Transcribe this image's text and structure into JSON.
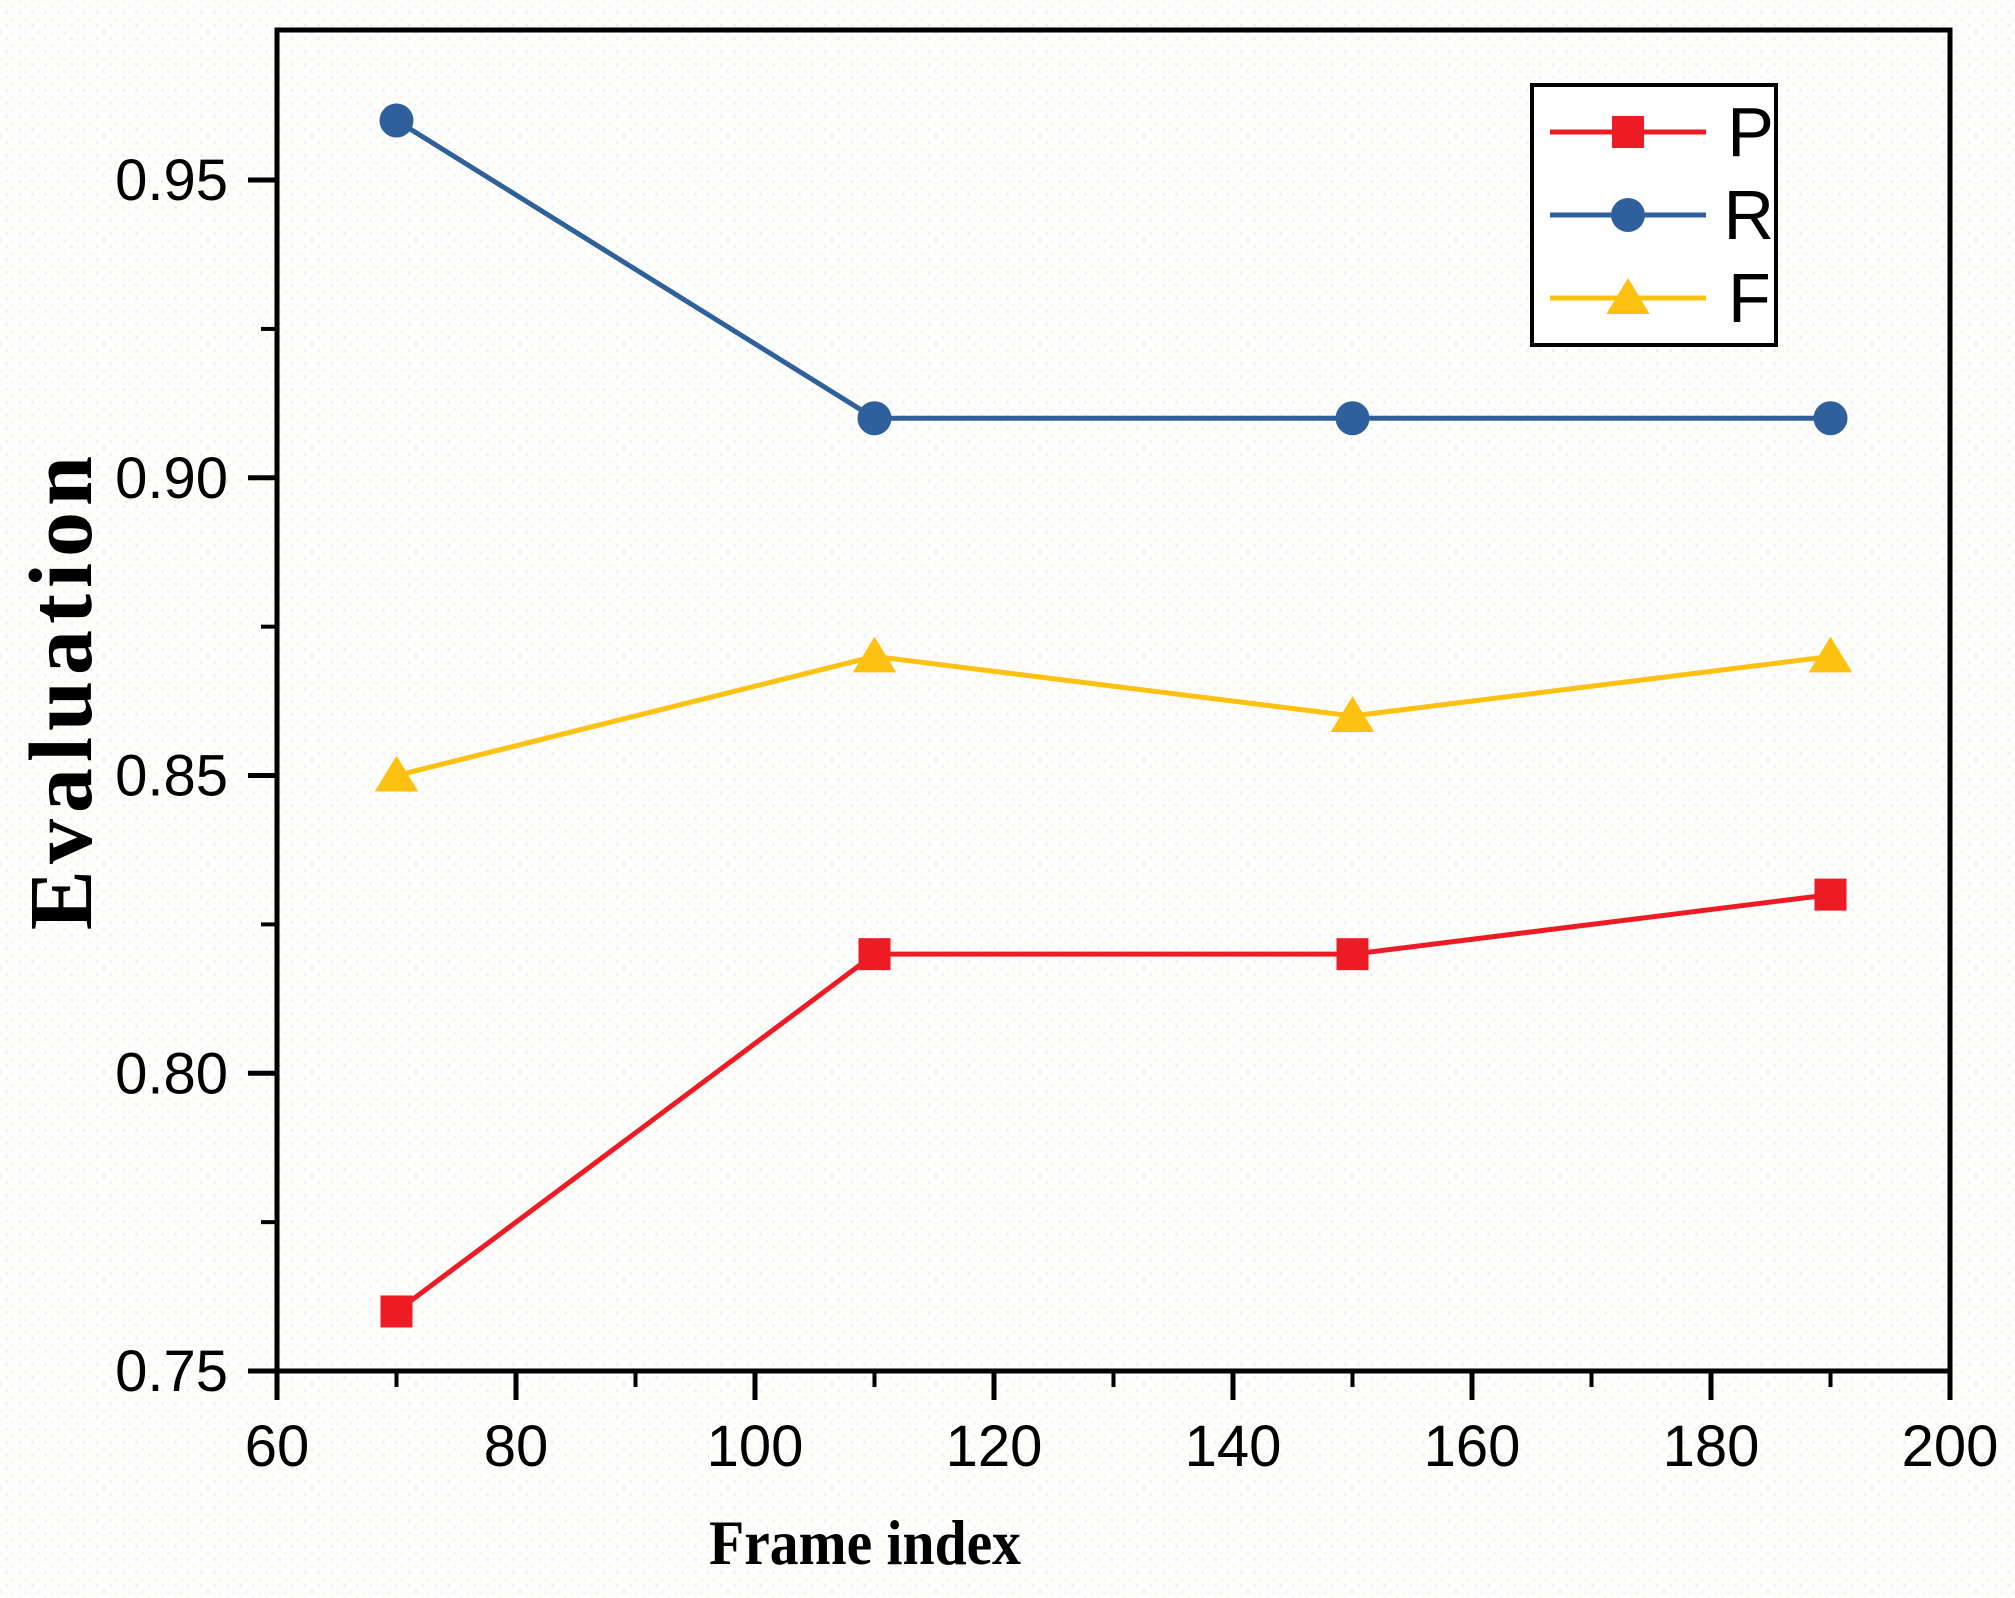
{
  "chart_data": {
    "type": "line",
    "title": "",
    "xlabel": "Frame index",
    "ylabel": "Evaluation",
    "x": [
      70,
      110,
      150,
      190
    ],
    "series": [
      {
        "name": "P",
        "values": [
          0.76,
          0.82,
          0.82,
          0.83
        ],
        "color": "#ED1C24",
        "marker": "square"
      },
      {
        "name": "R",
        "values": [
          0.96,
          0.91,
          0.91,
          0.91
        ],
        "color": "#30609B",
        "marker": "circle"
      },
      {
        "name": "F",
        "values": [
          0.85,
          0.87,
          0.86,
          0.87
        ],
        "color": "#FDC112",
        "marker": "triangle"
      }
    ],
    "xlim": [
      60,
      200
    ],
    "ylim": [
      0.75,
      0.9752
    ],
    "xticks": {
      "values": [
        60,
        80,
        100,
        120,
        140,
        160,
        180,
        200
      ],
      "labels": [
        "60",
        "80",
        "100",
        "120",
        "140",
        "160",
        "180",
        "200"
      ]
    },
    "yticks": {
      "values": [
        0.75,
        0.8,
        0.85,
        0.9,
        0.95
      ],
      "labels": [
        "0.75",
        "0.80",
        "0.85",
        "0.90",
        "0.95"
      ]
    },
    "xminor": [
      70,
      90,
      110,
      130,
      150,
      170,
      190
    ],
    "yminor": [
      0.775,
      0.825,
      0.875,
      0.925
    ],
    "grid": false,
    "legend": {
      "position": "top-right"
    },
    "axis_color": "#000000",
    "background_color": "#FDFDFB"
  }
}
